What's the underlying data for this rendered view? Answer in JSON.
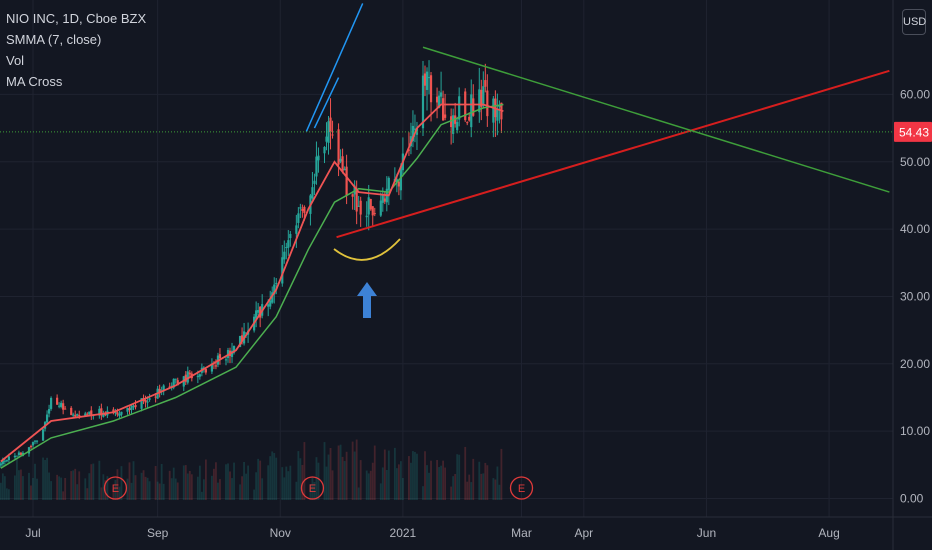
{
  "legend": {
    "symbol": "NIO INC, 1D, Cboe BZX",
    "indicator1": "SMMA (7, close)",
    "indicator2": "Vol",
    "indicator3": "MA Cross"
  },
  "currency": "USD",
  "colors": {
    "background": "#131722",
    "grid": "#1f2330",
    "up": "#26a69a",
    "down": "#ef5350",
    "smma": "#f05454",
    "ma_slow": "#4caf50",
    "trend_red": "#d61e1e",
    "trend_green": "#3e9e3a",
    "trend_blue": "#2196f3",
    "arc": "#e0c23c",
    "price_badge": "#f23645",
    "earnings": "#e03a3a"
  },
  "chart_data": {
    "type": "candlestick",
    "title": "NIO INC, 1D, Cboe BZX",
    "y_ticks": [
      "0.00",
      "10.00",
      "20.00",
      "30.00",
      "40.00",
      "50.00",
      "60.00"
    ],
    "x_ticks": [
      "Jul",
      "Sep",
      "Nov",
      "2021",
      "Mar",
      "Apr",
      "Jun",
      "Aug"
    ],
    "ylim": [
      -1.5,
      72
    ],
    "last_price": "54.43",
    "earnings_marker": "E",
    "earnings_dates": [
      "2020-08-11",
      "2020-11-17",
      "2021-03-01"
    ],
    "price_path": [
      {
        "date": "2020-06-15",
        "price": 5.6
      },
      {
        "date": "2020-06-25",
        "price": 6.6
      },
      {
        "date": "2020-07-05",
        "price": 9.5
      },
      {
        "date": "2020-07-10",
        "price": 14.5
      },
      {
        "date": "2020-07-22",
        "price": 12.5
      },
      {
        "date": "2020-08-05",
        "price": 12.8
      },
      {
        "date": "2020-08-15",
        "price": 12.5
      },
      {
        "date": "2020-08-25",
        "price": 14.6
      },
      {
        "date": "2020-09-05",
        "price": 16.5
      },
      {
        "date": "2020-09-15",
        "price": 18.0
      },
      {
        "date": "2020-09-25",
        "price": 18.8
      },
      {
        "date": "2020-10-05",
        "price": 21.5
      },
      {
        "date": "2020-10-15",
        "price": 24.5
      },
      {
        "date": "2020-10-25",
        "price": 29.0
      },
      {
        "date": "2020-11-01",
        "price": 34.0
      },
      {
        "date": "2020-11-10",
        "price": 41.5
      },
      {
        "date": "2020-11-18",
        "price": 48.0
      },
      {
        "date": "2020-11-25",
        "price": 54.5
      },
      {
        "date": "2020-12-02",
        "price": 48.0
      },
      {
        "date": "2020-12-08",
        "price": 44.5
      },
      {
        "date": "2020-12-15",
        "price": 43.5
      },
      {
        "date": "2020-12-22",
        "price": 44.5
      },
      {
        "date": "2020-12-30",
        "price": 48.5
      },
      {
        "date": "2021-01-06",
        "price": 53.0
      },
      {
        "date": "2021-01-11",
        "price": 62.0
      },
      {
        "date": "2021-01-18",
        "price": 58.0
      },
      {
        "date": "2021-01-25",
        "price": 57.0
      },
      {
        "date": "2021-02-01",
        "price": 58.0
      },
      {
        "date": "2021-02-08",
        "price": 60.5
      },
      {
        "date": "2021-02-15",
        "price": 58.5
      },
      {
        "date": "2021-02-20",
        "price": 54.4
      }
    ],
    "smma_path": [
      {
        "date": "2020-06-15",
        "value": 5.5
      },
      {
        "date": "2020-07-10",
        "value": 11.5
      },
      {
        "date": "2020-08-10",
        "value": 12.8
      },
      {
        "date": "2020-09-10",
        "value": 16.8
      },
      {
        "date": "2020-10-10",
        "value": 22.0
      },
      {
        "date": "2020-10-30",
        "value": 31.0
      },
      {
        "date": "2020-11-15",
        "value": 43.0
      },
      {
        "date": "2020-11-28",
        "value": 50.0
      },
      {
        "date": "2020-12-10",
        "value": 45.5
      },
      {
        "date": "2020-12-25",
        "value": 45.0
      },
      {
        "date": "2021-01-08",
        "value": 55.0
      },
      {
        "date": "2021-01-20",
        "value": 58.5
      },
      {
        "date": "2021-02-10",
        "value": 58.5
      },
      {
        "date": "2021-02-20",
        "value": 57.5
      }
    ],
    "ma_slow_path": [
      {
        "date": "2020-06-15",
        "value": 4.5
      },
      {
        "date": "2020-07-10",
        "value": 9.0
      },
      {
        "date": "2020-08-10",
        "value": 11.5
      },
      {
        "date": "2020-09-10",
        "value": 15.0
      },
      {
        "date": "2020-10-10",
        "value": 19.5
      },
      {
        "date": "2020-10-30",
        "value": 27.0
      },
      {
        "date": "2020-11-15",
        "value": 37.0
      },
      {
        "date": "2020-11-28",
        "value": 44.0
      },
      {
        "date": "2020-12-10",
        "value": 46.0
      },
      {
        "date": "2020-12-25",
        "value": 45.5
      },
      {
        "date": "2021-01-08",
        "value": 50.5
      },
      {
        "date": "2021-01-20",
        "value": 55.5
      },
      {
        "date": "2021-02-10",
        "value": 58.0
      },
      {
        "date": "2021-02-20",
        "value": 58.5
      }
    ],
    "trendlines": [
      {
        "color": "red",
        "from": {
          "date": "2020-11-29",
          "price": 38.8
        },
        "to": {
          "date": "2021-08-31",
          "price": 63.5
        }
      },
      {
        "color": "green",
        "from": {
          "date": "2021-01-11",
          "price": 67.0
        },
        "to": {
          "date": "2021-08-31",
          "price": 45.5
        }
      },
      {
        "color": "blue",
        "from": {
          "date": "2020-11-14",
          "price": 54.5
        },
        "to": {
          "date": "2020-12-12",
          "price": 73.5
        }
      },
      {
        "color": "blue",
        "from": {
          "date": "2020-11-18",
          "price": 55.0
        },
        "to": {
          "date": "2020-11-30",
          "price": 62.5
        }
      }
    ]
  }
}
